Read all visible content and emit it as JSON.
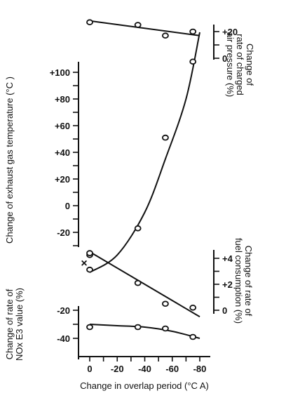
{
  "chart_data": [
    {
      "id": "air",
      "type": "scatter",
      "ylabel": [
        "Change of",
        "rate of charged",
        "air pressure (%)"
      ],
      "yticks": [
        {
          "v": 20,
          "label": "+20"
        },
        {
          "v": 0,
          "label": "0"
        }
      ],
      "x": [
        0,
        -35,
        -55,
        -75
      ],
      "y": [
        27,
        25,
        17,
        20
      ],
      "fit": [
        [
          0,
          28
        ],
        [
          -80,
          17
        ]
      ],
      "ylim": [
        0,
        35
      ]
    },
    {
      "id": "exhaust",
      "type": "scatter",
      "ylabel": [
        "Change of exhaust gas temperature (°C )"
      ],
      "yticks": [
        {
          "v": 100,
          "label": "+100"
        },
        {
          "v": 80,
          "label": "+80"
        },
        {
          "v": 60,
          "label": "+60"
        },
        {
          "v": 40,
          "label": "+40"
        },
        {
          "v": 20,
          "label": "+20"
        },
        {
          "v": 0,
          "label": "0"
        },
        {
          "v": -20,
          "label": "-20"
        }
      ],
      "x": [
        0,
        0,
        -35,
        -55,
        -75
      ],
      "y": [
        -37,
        -48,
        -17,
        51,
        108
      ],
      "fit": [
        [
          0,
          -50
        ],
        [
          -20,
          -37
        ],
        [
          -40,
          -5
        ],
        [
          -55,
          35
        ],
        [
          -70,
          80
        ],
        [
          -80,
          130
        ]
      ],
      "ylim": [
        -38,
        120
      ]
    },
    {
      "id": "fuel",
      "type": "scatter",
      "ylabel": [
        "Change of rate of",
        "fuel consumption (%)"
      ],
      "yticks": [
        {
          "v": 4,
          "label": "+4"
        },
        {
          "v": 2,
          "label": "+2"
        },
        {
          "v": 0,
          "label": "0"
        }
      ],
      "x": [
        0,
        -35,
        -55,
        -75
      ],
      "y": [
        4.4,
        2.1,
        0.5,
        0.2
      ],
      "fit": [
        [
          0,
          4.5
        ],
        [
          -80,
          -0.5
        ]
      ],
      "ylim": [
        -1.2,
        4.5
      ]
    },
    {
      "id": "nox",
      "type": "scatter",
      "ylabel": [
        "Change of rate of",
        "NOx E3 value (%)"
      ],
      "yticks": [
        {
          "v": -20,
          "label": "-20"
        },
        {
          "v": -40,
          "label": "-40"
        }
      ],
      "x": [
        0,
        -35,
        -55,
        -75
      ],
      "y": [
        -32,
        -32,
        -33,
        -39
      ],
      "fit": [
        [
          0,
          -30
        ],
        [
          -20,
          -31
        ],
        [
          -40,
          -32
        ],
        [
          -60,
          -35
        ],
        [
          -80,
          -40
        ]
      ],
      "ylim": [
        -47,
        -13
      ]
    }
  ],
  "x_axis": {
    "title": "Change in overlap period (°C A)",
    "ticks": [
      {
        "v": 0,
        "label": "0"
      },
      {
        "v": -20,
        "label": "-20"
      },
      {
        "v": -40,
        "label": "-40"
      },
      {
        "v": -60,
        "label": "-60"
      },
      {
        "v": -80,
        "label": "-80"
      }
    ]
  },
  "marker_label": "×"
}
